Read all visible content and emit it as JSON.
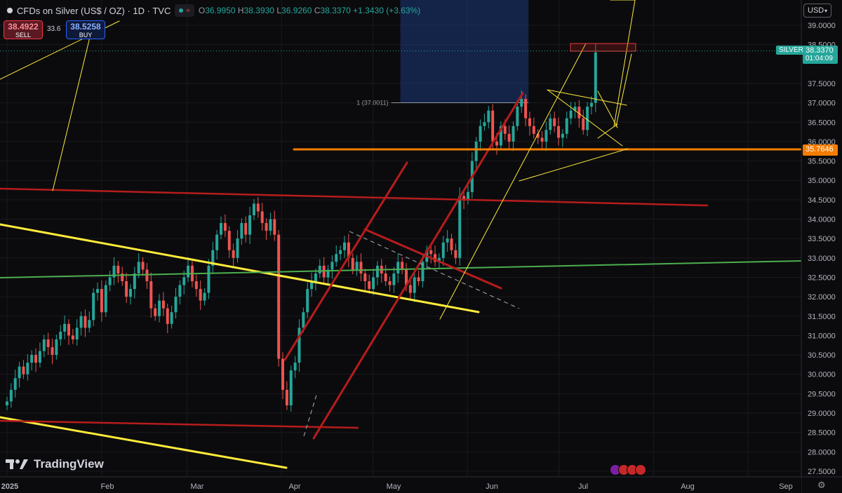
{
  "header": {
    "symbol_title": "CFDs on Silver (US$ / OZ) · 1D · TVC",
    "ohlc": [
      {
        "key": "O",
        "value": "36.9950"
      },
      {
        "key": "H",
        "value": "38.3930"
      },
      {
        "key": "L",
        "value": "36.9260"
      },
      {
        "key": "C",
        "value": "38.3370"
      }
    ],
    "change": "+1.3430 (+3.63%)"
  },
  "trade": {
    "sell_price": "38.4922",
    "sell_label": "SELL",
    "buy_price": "38.5258",
    "buy_label": "BUY",
    "spread": "33.6"
  },
  "currency_button": "USD",
  "symbol_label": "SILVER",
  "last_price": "38.3370",
  "countdown": "01:04:09",
  "level_price": "35.7646",
  "position_label": "1 (37.0011)",
  "logo_text": "TradingView",
  "colors": {
    "up": "#26a69a",
    "down": "#ef5350",
    "bg": "#0b0b0d",
    "orange": "#f57c00",
    "darkred": "#b71c1c",
    "yellow": "#ffeb3b",
    "green": "#4caf50"
  },
  "chart_data": {
    "type": "candlestick",
    "y_axis": {
      "ticks": [
        "39.0000",
        "38.5000",
        "37.5000",
        "37.0000",
        "36.5000",
        "36.0000",
        "35.5000",
        "35.0000",
        "34.5000",
        "34.0000",
        "33.5000",
        "33.0000",
        "32.5000",
        "32.0000",
        "31.5000",
        "31.0000",
        "30.5000",
        "30.0000",
        "29.5000",
        "29.0000",
        "28.5000",
        "28.0000",
        "27.5000"
      ],
      "range": [
        27.3,
        39.5
      ]
    },
    "x_axis": {
      "ticks": [
        "2025",
        "Feb",
        "Mar",
        "Apr",
        "May",
        "Jun",
        "Jul",
        "Aug",
        "Sep"
      ],
      "range_days": [
        0,
        260
      ]
    },
    "x_tick_days": [
      0,
      31,
      59,
      90,
      120,
      151,
      181,
      212,
      243
    ],
    "closes": [
      29.3,
      29.6,
      29.9,
      30.2,
      30.0,
      30.3,
      30.5,
      30.3,
      30.6,
      30.9,
      30.7,
      30.5,
      30.9,
      31.1,
      31.3,
      31.0,
      30.9,
      31.2,
      31.5,
      31.2,
      31.4,
      32.1,
      32.2,
      31.6,
      32.3,
      32.5,
      32.8,
      32.6,
      32.4,
      32.0,
      32.2,
      32.6,
      32.9,
      32.7,
      32.4,
      31.7,
      31.5,
      31.9,
      31.7,
      31.3,
      31.6,
      32.0,
      32.3,
      32.5,
      32.8,
      32.4,
      32.2,
      31.9,
      32.1,
      32.8,
      33.2,
      33.6,
      33.9,
      33.7,
      33.2,
      33.0,
      33.5,
      33.9,
      33.6,
      34.1,
      34.4,
      34.2,
      33.9,
      33.7,
      34.0,
      33.6,
      30.4,
      29.6,
      29.2,
      30.1,
      30.3,
      31.2,
      31.6,
      32.2,
      32.4,
      32.6,
      32.8,
      32.5,
      32.7,
      32.9,
      33.1,
      33.2,
      33.4,
      33.0,
      32.7,
      32.9,
      32.6,
      32.4,
      32.2,
      32.5,
      32.8,
      32.6,
      32.4,
      32.3,
      32.6,
      32.9,
      32.7,
      32.3,
      32.1,
      32.5,
      32.4,
      32.9,
      33.2,
      33.1,
      32.9,
      33.0,
      33.4,
      33.5,
      33.2,
      33.0,
      34.6,
      34.5,
      34.7,
      35.5,
      36.0,
      36.4,
      36.5,
      36.8,
      36.0,
      35.9,
      36.4,
      36.2,
      36.0,
      36.4,
      36.9,
      37.1,
      36.6,
      36.4,
      36.2,
      36.1,
      36.0,
      36.3,
      36.6,
      36.4,
      36.1,
      36.2,
      36.6,
      36.8,
      36.9,
      36.6,
      36.3,
      36.9,
      37.0,
      38.3
    ]
  }
}
